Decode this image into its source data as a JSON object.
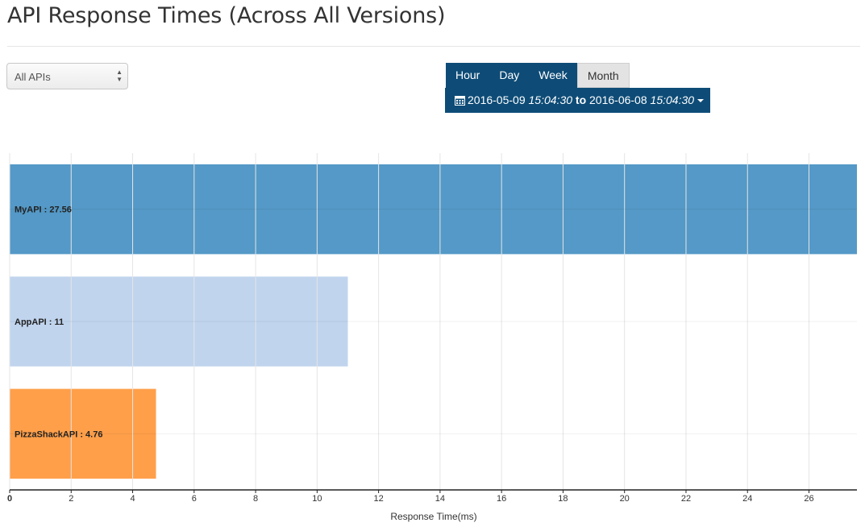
{
  "page": {
    "title": "API Response Times (Across All Versions)"
  },
  "api_select": {
    "value": "All APIs"
  },
  "range_buttons": [
    {
      "label": "Hour",
      "active": false
    },
    {
      "label": "Day",
      "active": false
    },
    {
      "label": "Week",
      "active": false
    },
    {
      "label": "Month",
      "active": true
    }
  ],
  "date_range": {
    "from_date": "2016-05-09",
    "from_time": "15:04:30",
    "separator": "to",
    "to_date": "2016-06-08",
    "to_time": "15:04:30"
  },
  "colors": {
    "accent": "#0e4c77",
    "bar_myapi": "#5499c7",
    "bar_appapi": "#c0d4ee",
    "bar_pizzashack": "#ff9f4a"
  },
  "chart_data": {
    "type": "bar",
    "orientation": "horizontal",
    "categories": [
      "MyAPI",
      "AppAPI",
      "PizzaShackAPI"
    ],
    "values": [
      27.56,
      11,
      4.76
    ],
    "bar_labels": [
      "MyAPI : 27.56",
      "AppAPI : 11",
      "PizzaShackAPI : 4.76"
    ],
    "colors": [
      "#5499c7",
      "#c0d4ee",
      "#ff9f4a"
    ],
    "xlabel": "Response Time(ms)",
    "ylabel": "",
    "xlim": [
      0,
      27.56
    ],
    "xticks": [
      0,
      2,
      4,
      6,
      8,
      10,
      12,
      14,
      16,
      18,
      20,
      22,
      24,
      26
    ],
    "grid": true,
    "legend": "none"
  }
}
